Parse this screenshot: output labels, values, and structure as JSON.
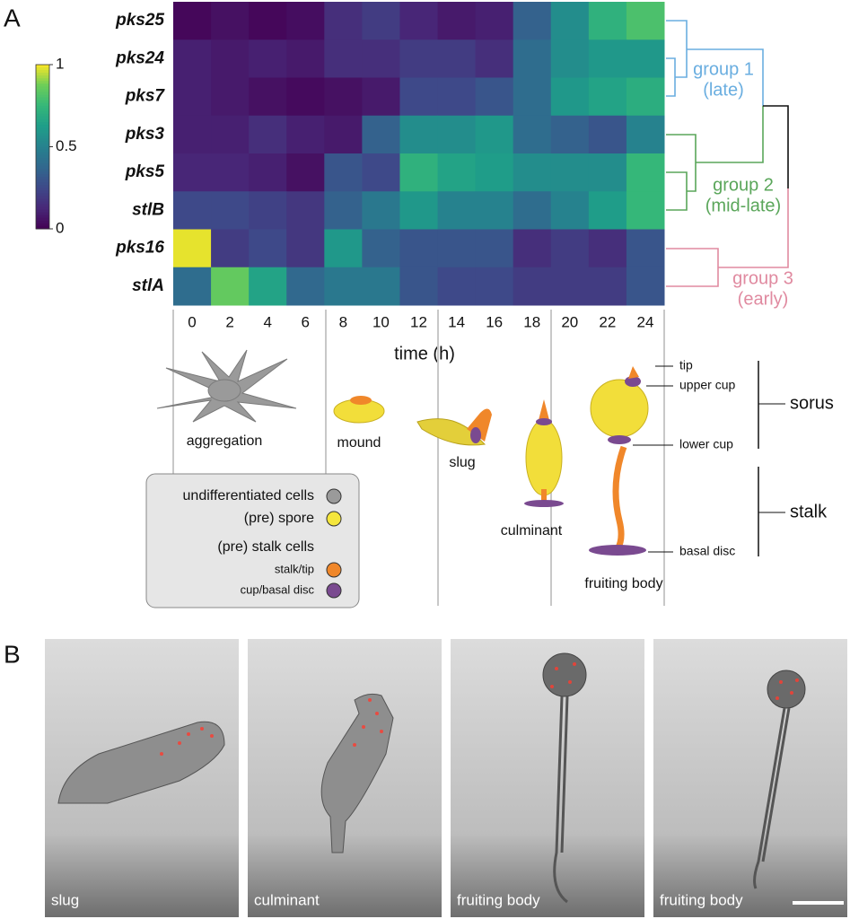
{
  "panel_a": "A",
  "panel_b": "B",
  "chart_data": {
    "type": "heatmap",
    "categories": [
      "pks25",
      "pks24",
      "pks7",
      "pks3",
      "pks5",
      "stlB",
      "pks16",
      "stlA"
    ],
    "x": [
      0,
      2,
      4,
      6,
      8,
      10,
      12,
      14,
      16,
      18,
      20,
      22,
      24
    ],
    "xlabel": "time (h)",
    "values": [
      [
        0.02,
        0.05,
        0.02,
        0.04,
        0.15,
        0.2,
        0.12,
        0.08,
        0.1,
        0.35,
        0.55,
        0.72,
        0.8
      ],
      [
        0.1,
        0.08,
        0.1,
        0.08,
        0.15,
        0.15,
        0.2,
        0.2,
        0.15,
        0.4,
        0.55,
        0.6,
        0.6
      ],
      [
        0.1,
        0.08,
        0.05,
        0.03,
        0.05,
        0.08,
        0.25,
        0.25,
        0.3,
        0.4,
        0.6,
        0.65,
        0.7
      ],
      [
        0.1,
        0.1,
        0.15,
        0.1,
        0.08,
        0.35,
        0.55,
        0.55,
        0.6,
        0.4,
        0.35,
        0.3,
        0.5
      ],
      [
        0.12,
        0.12,
        0.1,
        0.05,
        0.3,
        0.25,
        0.72,
        0.65,
        0.62,
        0.55,
        0.55,
        0.55,
        0.75
      ],
      [
        0.25,
        0.25,
        0.22,
        0.18,
        0.35,
        0.45,
        0.6,
        0.5,
        0.5,
        0.4,
        0.5,
        0.62,
        0.75
      ],
      [
        0.98,
        0.2,
        0.25,
        0.18,
        0.6,
        0.35,
        0.3,
        0.3,
        0.3,
        0.15,
        0.2,
        0.15,
        0.3
      ],
      [
        0.4,
        0.85,
        0.65,
        0.38,
        0.45,
        0.45,
        0.3,
        0.25,
        0.25,
        0.2,
        0.2,
        0.2,
        0.3
      ]
    ],
    "clim": [
      0,
      1
    ],
    "cticks": [
      0,
      0.5,
      1
    ],
    "colorscale": [
      "#440154",
      "#482878",
      "#3e4989",
      "#31688e",
      "#26828e",
      "#1f9e89",
      "#35b779",
      "#6ece58",
      "#fde725"
    ]
  },
  "groups": [
    {
      "name": "group 1",
      "sub": "(late)",
      "color": "#6aaee0"
    },
    {
      "name": "group 2",
      "sub": "(mid-late)",
      "color": "#5aa65a"
    },
    {
      "name": "group 3",
      "sub": "(early)",
      "color": "#e08aa0"
    }
  ],
  "stages": [
    "aggregation",
    "mound",
    "slug",
    "culminant",
    "fruiting body"
  ],
  "anatomy": [
    "tip",
    "upper cup",
    "lower cup",
    "basal disc"
  ],
  "regions": [
    "sorus",
    "stalk"
  ],
  "legend": {
    "undiff": "undifferentiated cells",
    "spore": "(pre) spore",
    "stalkcells": "(pre) stalk cells",
    "stalktip": "stalk/tip",
    "cup": "cup/basal disc"
  },
  "photos": [
    "slug",
    "culminant",
    "fruiting body",
    "fruiting body"
  ]
}
